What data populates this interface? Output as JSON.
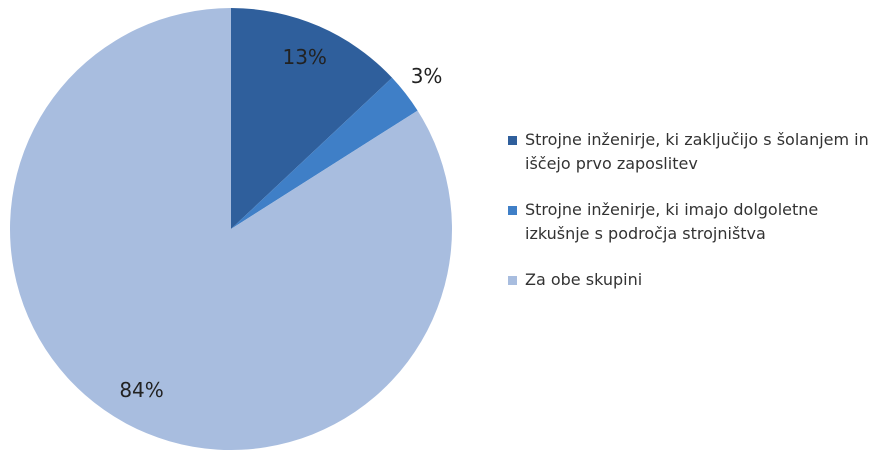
{
  "chart_data": {
    "type": "pie",
    "categories": [
      "Strojne inženirje, ki zaključijo s šolanjem in iščejo prvo zaposlitev",
      "Strojne inženirje, ki imajo dolgoletne izkušnje s področja strojništva",
      "Za obe skupini"
    ],
    "values": [
      13,
      3,
      84
    ],
    "value_labels": [
      "13%",
      "3%",
      "84%"
    ],
    "colors": [
      "#2f5f9c",
      "#3f7fc7",
      "#a8bddf"
    ]
  }
}
